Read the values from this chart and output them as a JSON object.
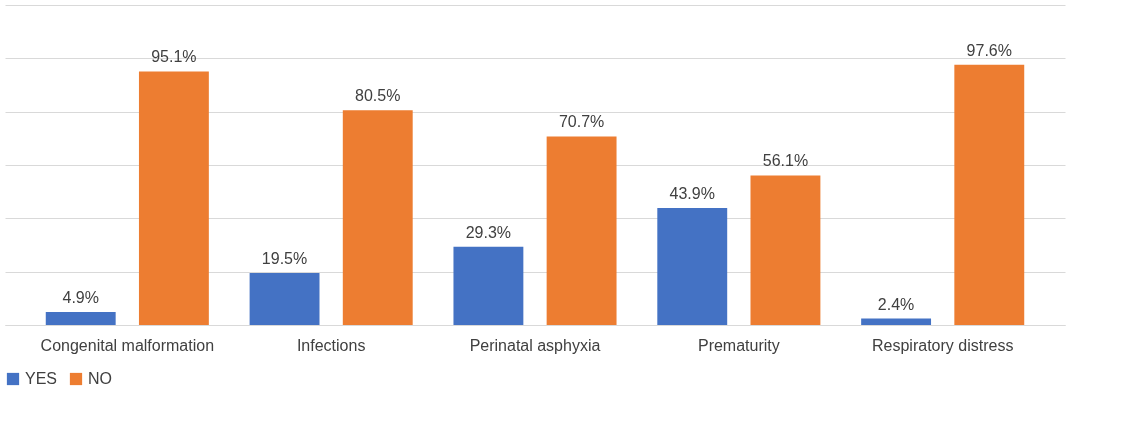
{
  "chart_data": {
    "type": "bar",
    "categories": [
      "Congenital malformation",
      "Infections",
      "Perinatal asphyxia",
      "Prematurity",
      "Respiratory distress"
    ],
    "series": [
      {
        "name": "YES",
        "color": "#4472c4",
        "values": [
          4.9,
          19.5,
          29.3,
          43.9,
          2.4
        ],
        "value_labels": [
          "4.9%",
          "19.5%",
          "29.3%",
          "43.9%",
          "2.4%"
        ]
      },
      {
        "name": "NO",
        "color": "#ed7d31",
        "values": [
          95.1,
          80.5,
          70.7,
          56.1,
          97.6
        ],
        "value_labels": [
          "95.1%",
          "80.5%",
          "70.7%",
          "56.1%",
          "97.6%"
        ]
      }
    ],
    "ylim": [
      0,
      120
    ],
    "yticks": [
      {
        "value": 0,
        "label": null
      },
      {
        "value": 20,
        "label": null
      },
      {
        "value": 40,
        "label": null
      },
      {
        "value": 60,
        "label": null
      },
      {
        "value": 80,
        "label": null
      },
      {
        "value": 100,
        "label": null
      },
      {
        "value": 120,
        "label": null
      }
    ],
    "grid": "y",
    "legend": "bottom",
    "tick_labels": "x"
  }
}
